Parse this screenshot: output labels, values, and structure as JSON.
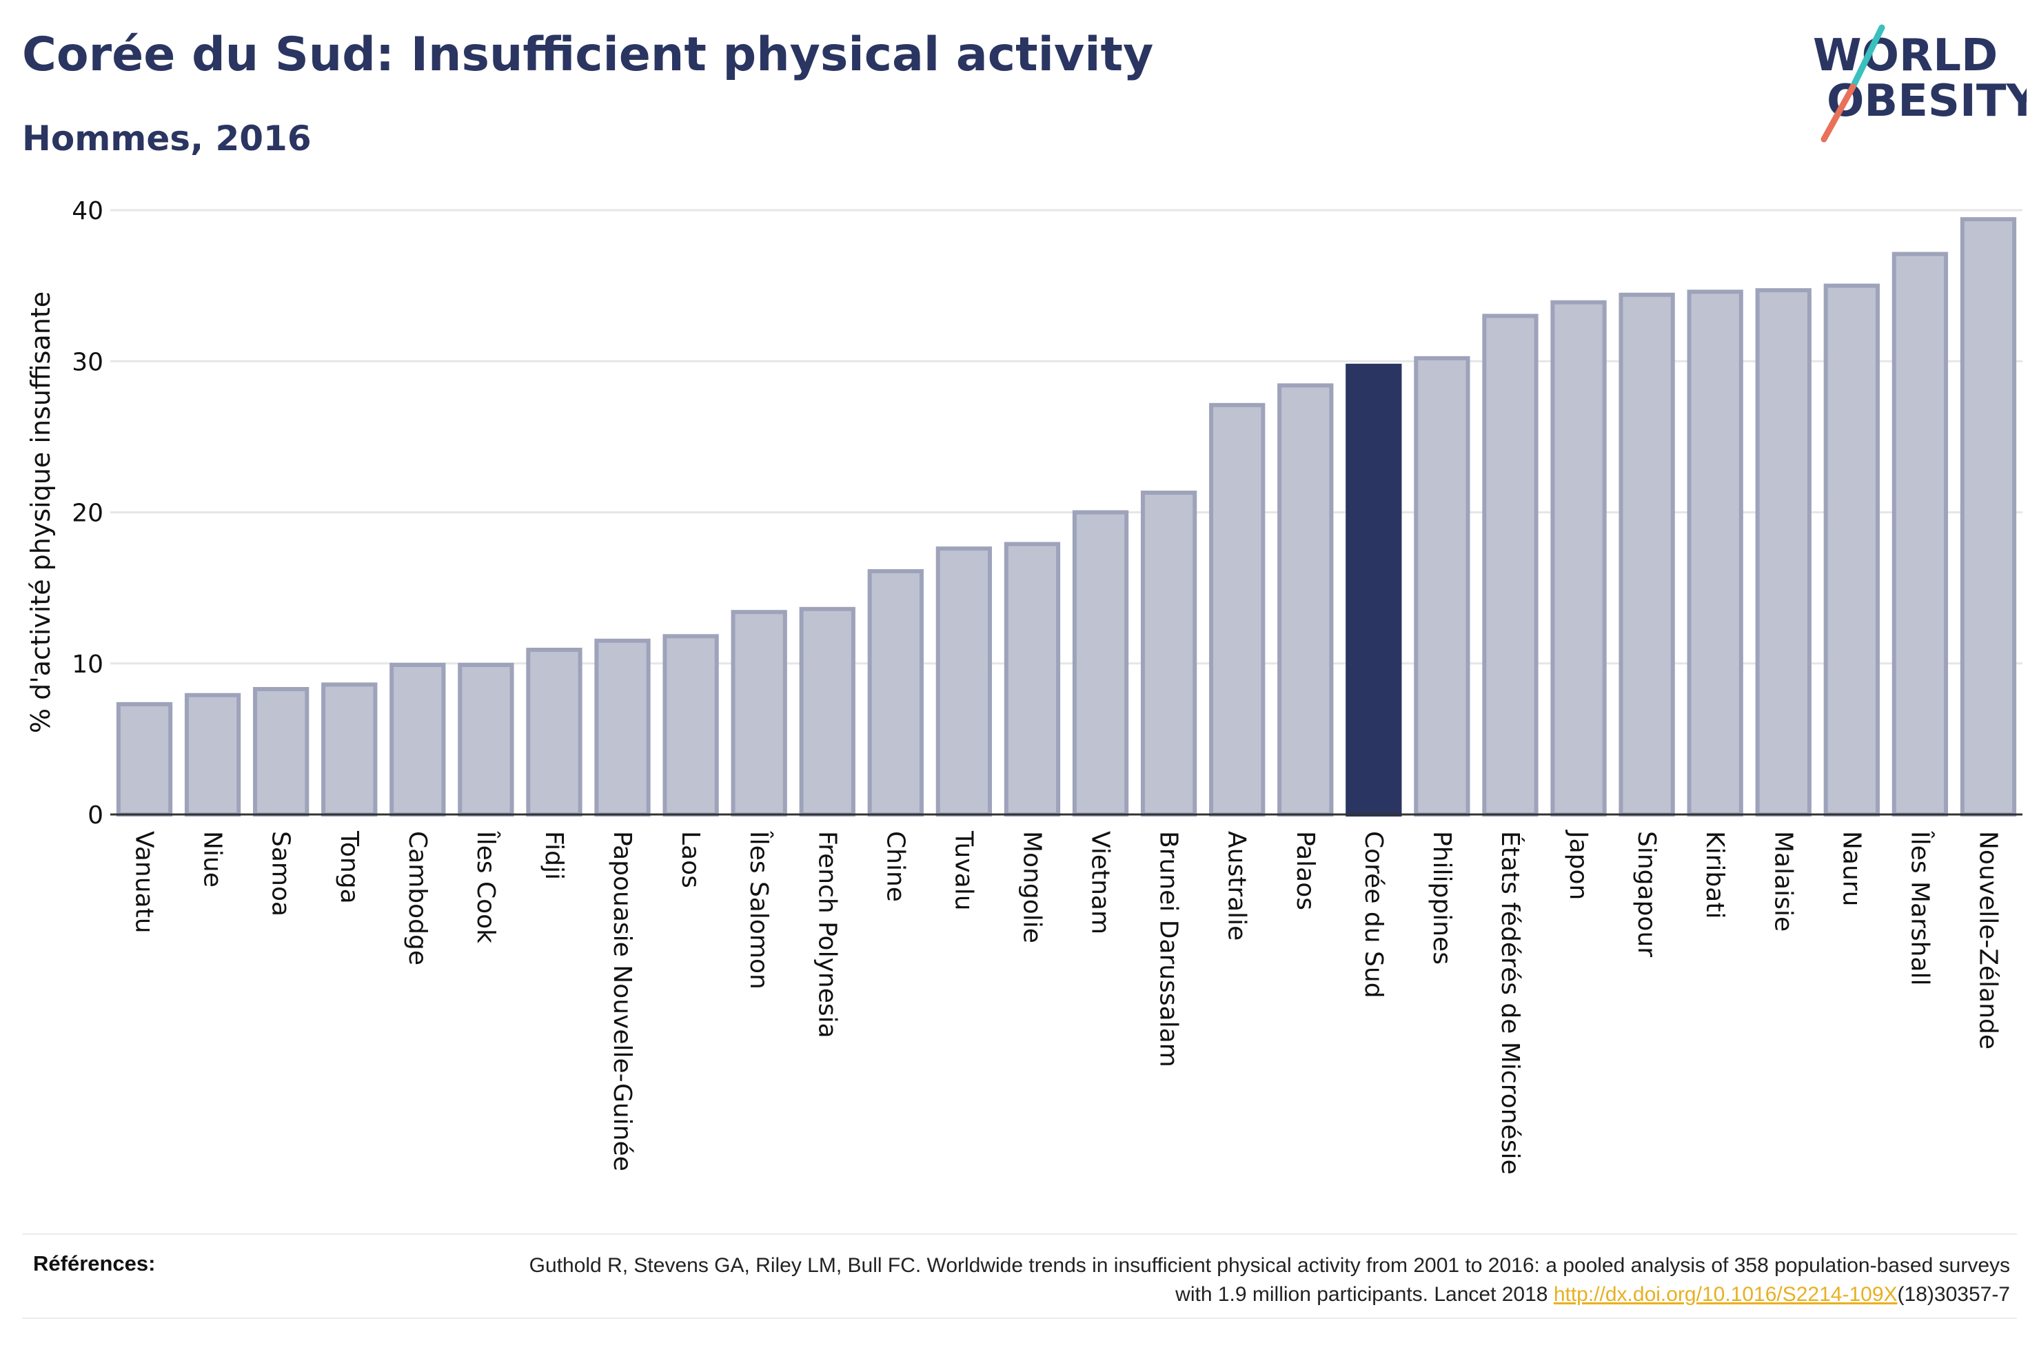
{
  "header": {
    "title": "Corée du Sud: Insufficient physical activity",
    "subtitle": "Hommes, 2016"
  },
  "logo": {
    "line1": "WORLD",
    "line2": "OBESITY"
  },
  "colors": {
    "highlight": "#2a3561",
    "bar_fill": "#bfc2d0",
    "bar_stroke": "#9ea3bb",
    "grid": "#e6e6e6",
    "text": "#2a3561",
    "link": "#e8b020"
  },
  "chart_data": {
    "type": "bar",
    "title": "Corée du Sud: Insufficient physical activity",
    "subtitle": "Hommes, 2016",
    "xlabel": "",
    "ylabel": "% d'activité physique insuffisante",
    "ylim": [
      0,
      40
    ],
    "yticks": [
      0,
      10,
      20,
      30,
      40
    ],
    "grid": true,
    "highlight": "Corée du Sud",
    "categories": [
      "Vanuatu",
      "Niue",
      "Samoa",
      "Tonga",
      "Cambodge",
      "Îles Cook",
      "Fidji",
      "Papouasie Nouvelle-Guinée",
      "Laos",
      "Îles Salomon",
      "French Polynesia",
      "Chine",
      "Tuvalu",
      "Mongolie",
      "Vietnam",
      "Brunei Darussalam",
      "Australie",
      "Palaos",
      "Corée du Sud",
      "Philippines",
      "États fédérés de Micronésie",
      "Japon",
      "Singapour",
      "Kiribati",
      "Malaisie",
      "Nauru",
      "Îles Marshall",
      "Nouvelle-Zélande"
    ],
    "values": [
      7.3,
      7.9,
      8.3,
      8.6,
      9.9,
      9.9,
      10.9,
      11.5,
      11.8,
      13.4,
      13.6,
      16.1,
      17.6,
      17.9,
      20.0,
      21.3,
      27.1,
      28.4,
      29.7,
      30.2,
      33.0,
      33.9,
      34.4,
      34.6,
      34.7,
      35.0,
      37.1,
      39.4
    ]
  },
  "references": {
    "label": "Références:",
    "text_before": "Guthold R, Stevens GA, Riley LM, Bull FC. Worldwide trends in insufficient physical activity from 2001 to 2016: a pooled analysis of 358 population-based surveys with 1.9 million participants. Lancet 2018 ",
    "link": "http://dx.doi.org/10.1016/S2214-109X",
    "text_after": "(18)30357-7"
  }
}
